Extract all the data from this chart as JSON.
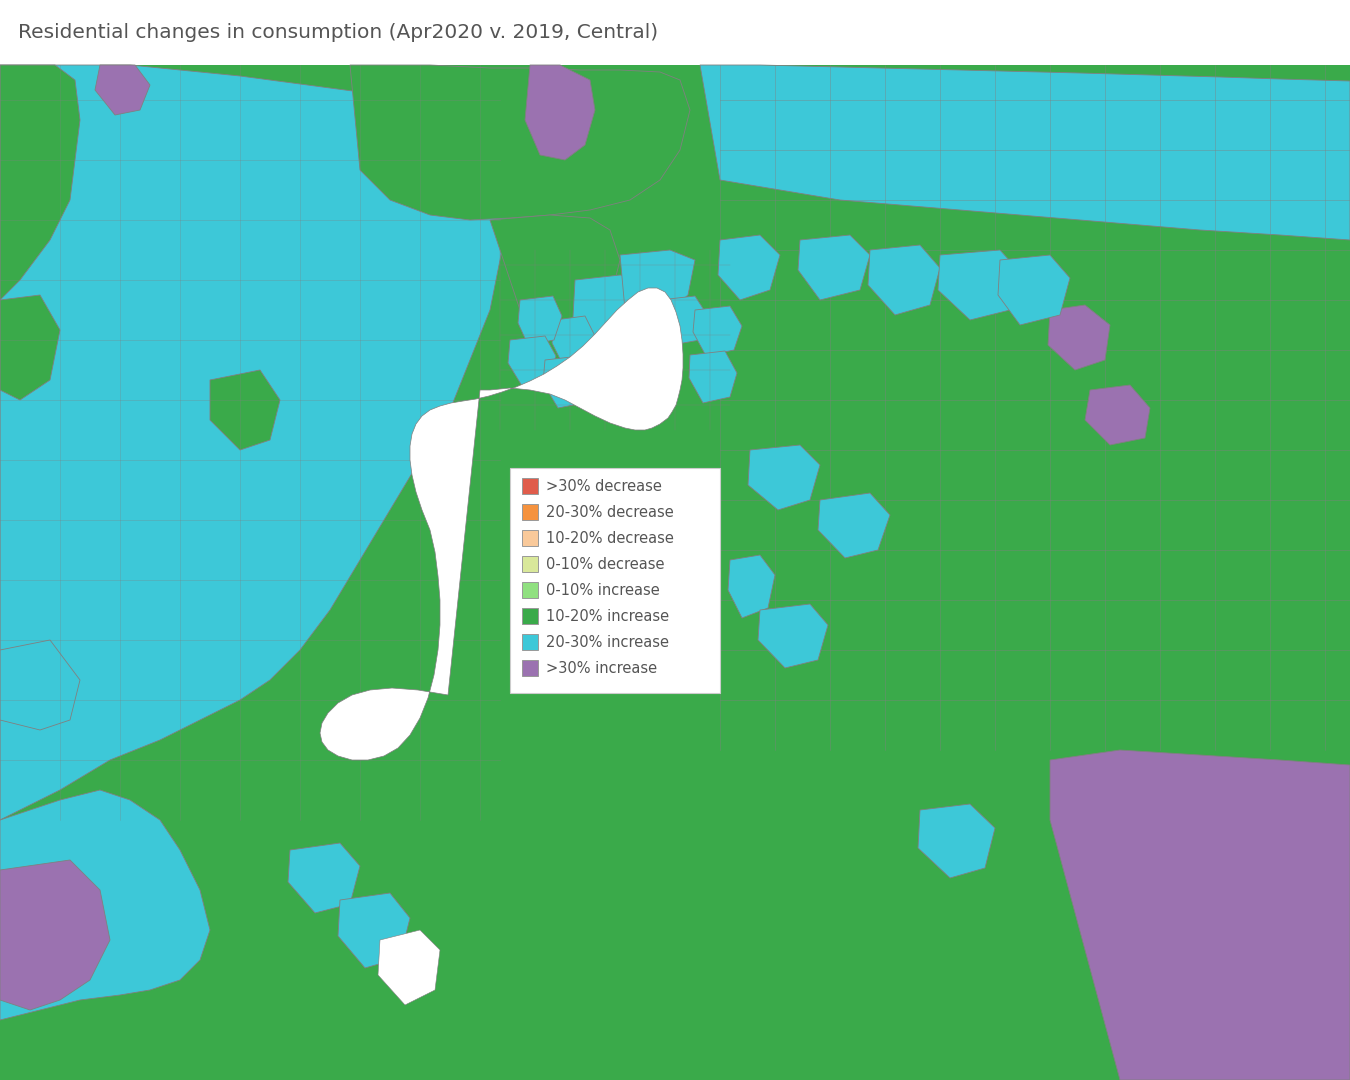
{
  "title": "Residential changes in consumption (Apr2020 v. 2019, Central)",
  "title_color": "#555555",
  "title_fontsize": 14.5,
  "background_color": "#ffffff",
  "legend_items": [
    {
      "label": ">30% decrease",
      "color": "#e05c4b"
    },
    {
      "label": "20-30% decrease",
      "color": "#f5923e"
    },
    {
      "label": "10-20% decrease",
      "color": "#f9c99a"
    },
    {
      "label": "0-10% decrease",
      "color": "#d9e89a"
    },
    {
      "label": "0-10% increase",
      "color": "#90e080"
    },
    {
      "label": "10-20% increase",
      "color": "#3aaa4a"
    },
    {
      "label": "20-30% increase",
      "color": "#3dc8d8"
    },
    {
      "label": ">30% increase",
      "color": "#9b72b0"
    }
  ],
  "legend_text_color": "#555555",
  "legend_fontsize": 10.5,
  "border_color": "#808080",
  "border_lw": 0.6,
  "water_color": "#ffffff",
  "increase_10": "#3aaa4a",
  "increase_20": "#3dc8d8",
  "increase_30": "#9b72b0",
  "increase_0": "#90e080",
  "decrease_30": "#e05c4b",
  "decrease_20": "#f5923e",
  "decrease_10": "#f9c99a",
  "decrease_0": "#d9e89a",
  "figsize": [
    13.5,
    10.8
  ],
  "dpi": 100
}
